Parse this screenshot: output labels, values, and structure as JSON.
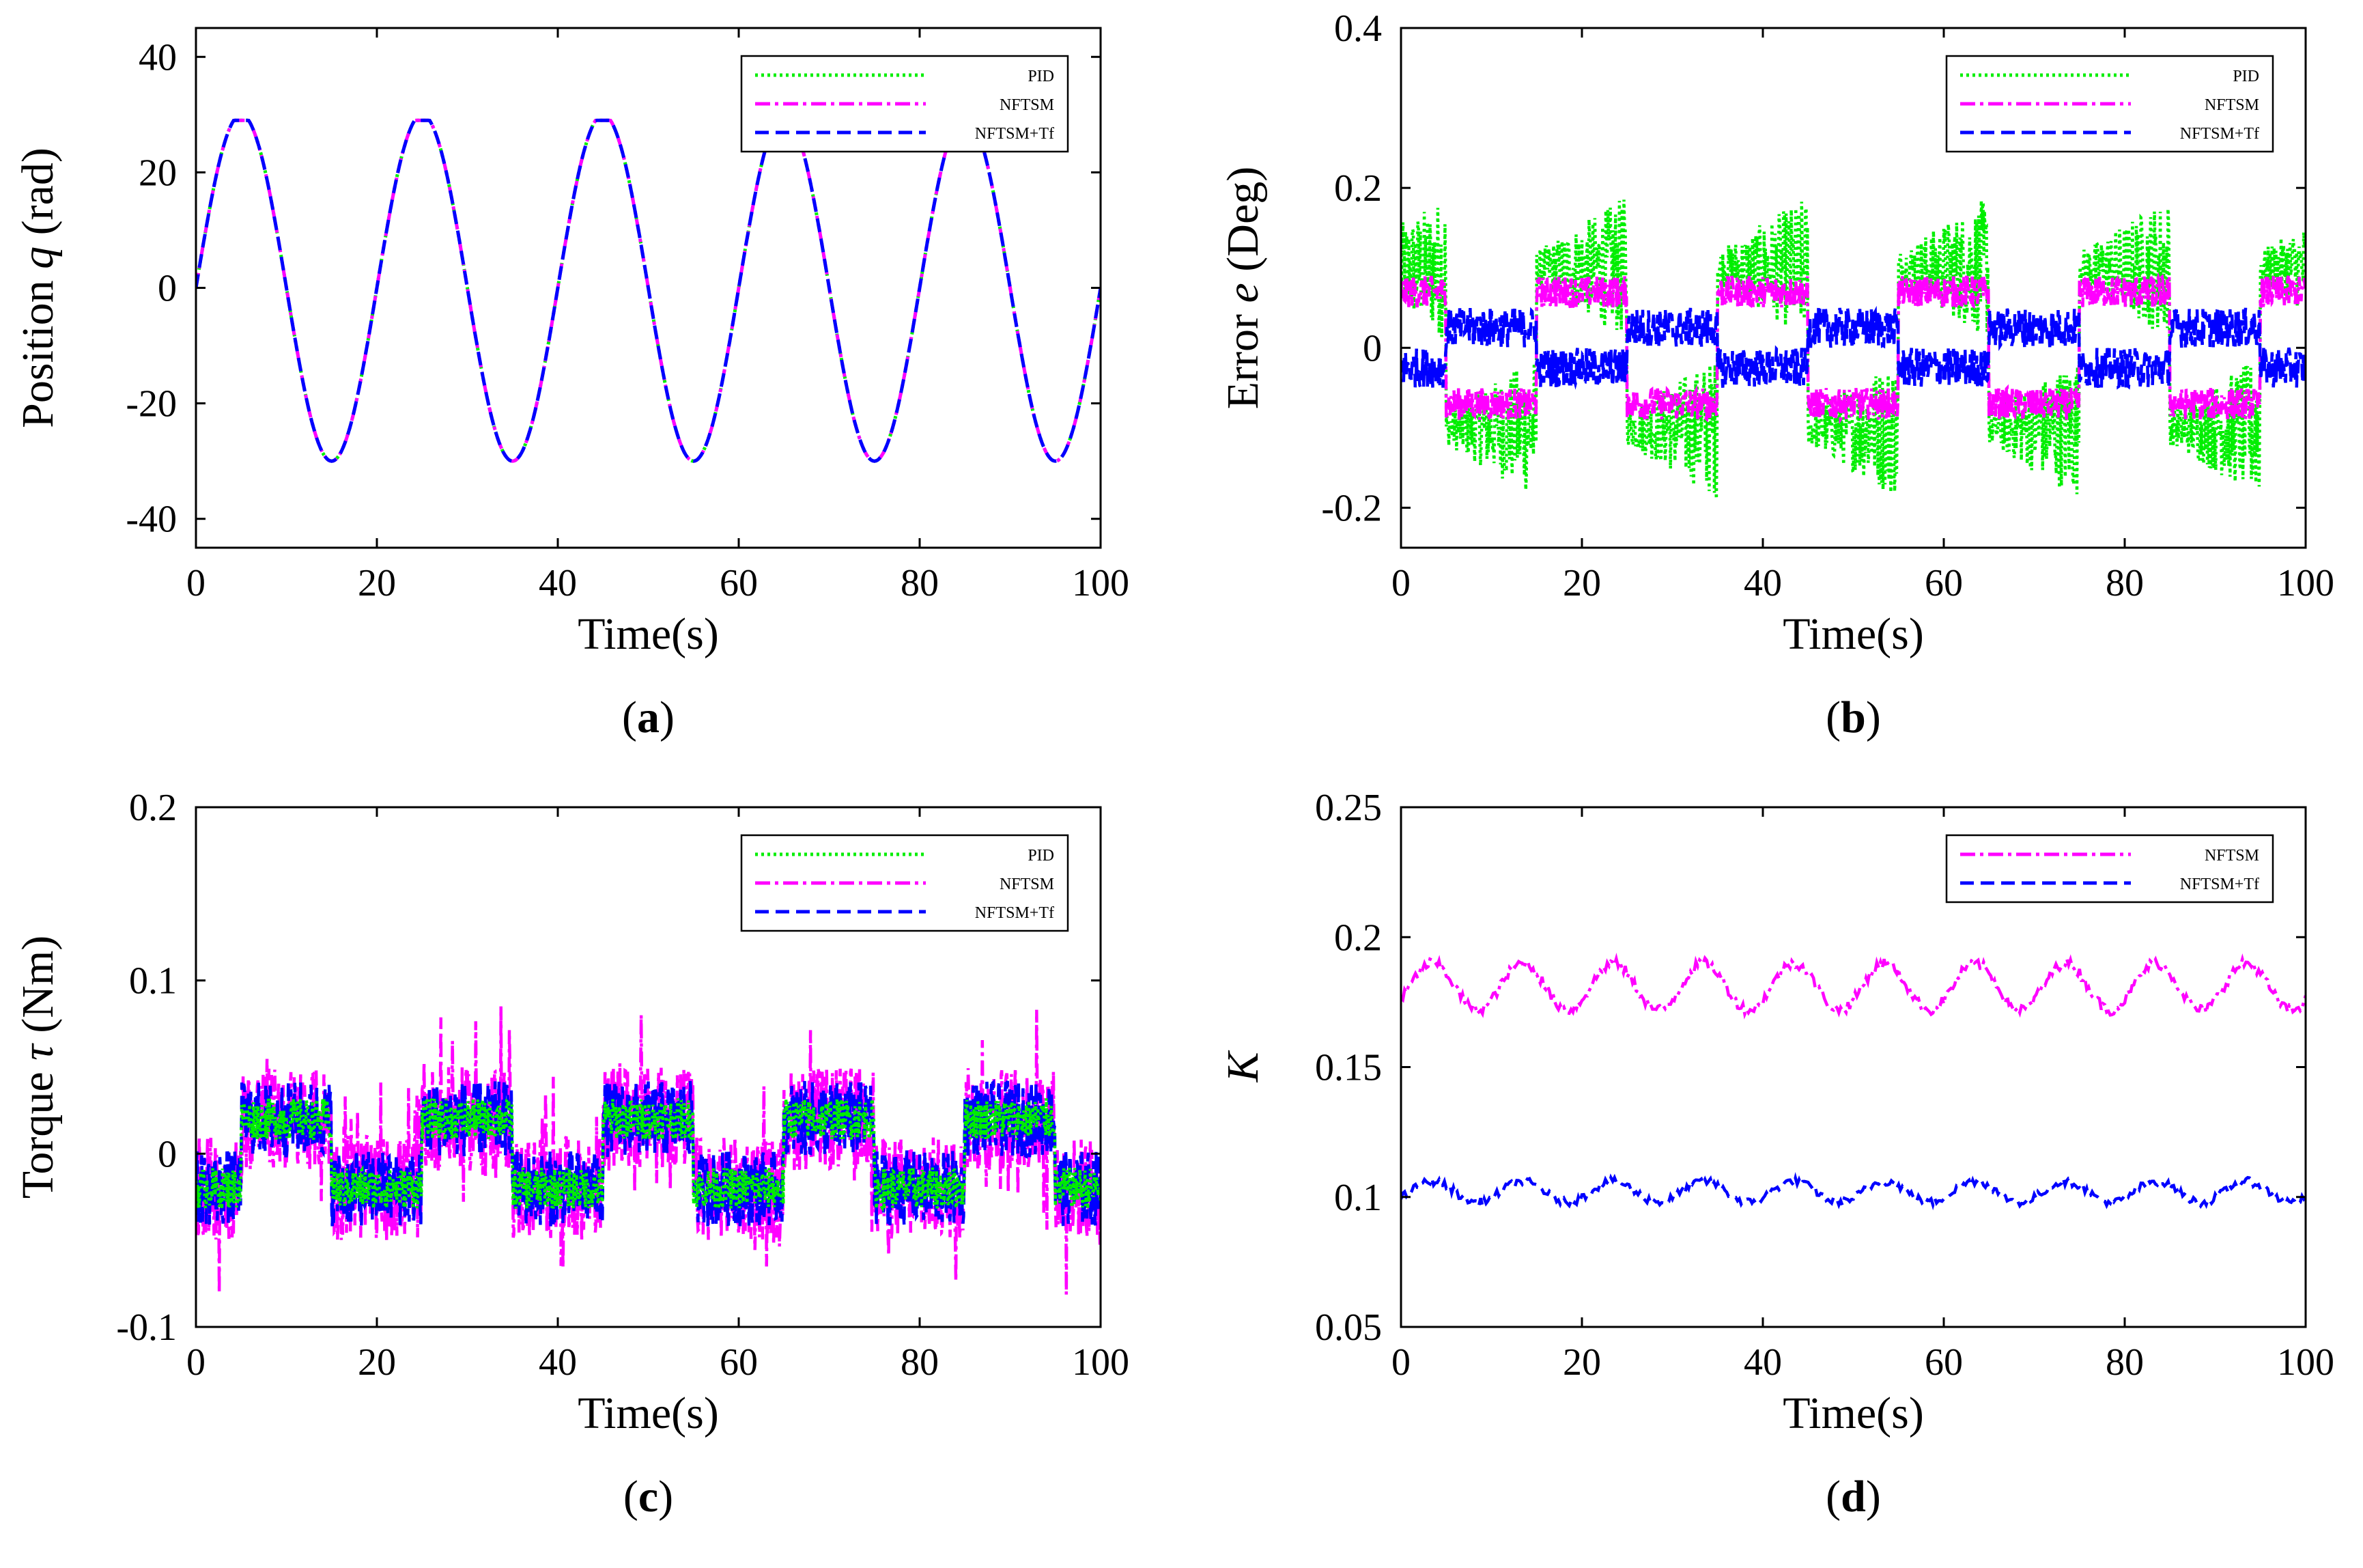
{
  "colors": {
    "PID": "#00ee00",
    "NFTSM": "#ff00ff",
    "NFTSM+Tf": "#0000ff"
  },
  "chart_data": [
    {
      "id": "a",
      "type": "line",
      "caption": "a",
      "xlabel": "Time(s)",
      "ylabel_prefix": "Position ",
      "ylabel_symbol": "q",
      "ylabel_suffix": " (rad)",
      "xlim": [
        0,
        100
      ],
      "ylim": [
        -45,
        45
      ],
      "xticks": [
        0,
        20,
        40,
        60,
        80,
        100
      ],
      "yticks": [
        -40,
        -20,
        0,
        20,
        40
      ],
      "xtick_labels": [
        "0",
        "20",
        "40",
        "60",
        "80",
        "100"
      ],
      "ytick_labels": [
        "-40",
        "-20",
        "0",
        "20",
        "40"
      ],
      "legend": [
        "PID",
        "NFTSM",
        "NFTSM+Tf"
      ],
      "series": [
        {
          "name": "PID",
          "kind": "trapsine",
          "amp": 30,
          "period": 20,
          "clip": 29,
          "offset": 0
        },
        {
          "name": "NFTSM",
          "kind": "trapsine",
          "amp": 30,
          "period": 20,
          "clip": 29,
          "offset": 0
        },
        {
          "name": "NFTSM+Tf",
          "kind": "trapsine",
          "amp": 30,
          "period": 20,
          "clip": 29,
          "offset": 0
        }
      ]
    },
    {
      "id": "b",
      "type": "line",
      "caption": "b",
      "xlabel": "Time(s)",
      "ylabel_prefix": "Error ",
      "ylabel_symbol": "e",
      "ylabel_suffix": " (Deg)",
      "xlim": [
        0,
        100
      ],
      "ylim": [
        -0.25,
        0.4
      ],
      "xticks": [
        0,
        20,
        40,
        60,
        80,
        100
      ],
      "yticks": [
        -0.2,
        0,
        0.2,
        0.4
      ],
      "xtick_labels": [
        "0",
        "20",
        "40",
        "60",
        "80",
        "100"
      ],
      "ytick_labels": [
        "-0.2",
        "0",
        "0.2",
        "0.4"
      ],
      "legend": [
        "PID",
        "NFTSM",
        "NFTSM+Tf"
      ],
      "series": [
        {
          "name": "PID",
          "kind": "square",
          "level": 0.1,
          "noise": 0.07,
          "period": 20,
          "phase": 5,
          "grow": true
        },
        {
          "name": "NFTSM",
          "kind": "square",
          "level": 0.07,
          "noise": 0.02,
          "period": 20,
          "phase": 5
        },
        {
          "name": "NFTSM+Tf",
          "kind": "square",
          "level": -0.025,
          "noise": 0.025,
          "period": 20,
          "phase": 5
        }
      ]
    },
    {
      "id": "c",
      "type": "line",
      "caption": "c",
      "xlabel": "Time(s)",
      "ylabel_prefix": "Torque ",
      "ylabel_symbol": "τ",
      "ylabel_suffix": " (Nm)",
      "xlim": [
        0,
        100
      ],
      "ylim": [
        -0.1,
        0.2
      ],
      "xticks": [
        0,
        20,
        40,
        60,
        80,
        100
      ],
      "yticks": [
        -0.1,
        0,
        0.1,
        0.2
      ],
      "xtick_labels": [
        "0",
        "20",
        "40",
        "60",
        "80",
        "100"
      ],
      "ytick_labels": [
        "-0.1",
        "0",
        "0.1",
        "0.2"
      ],
      "legend": [
        "PID",
        "NFTSM",
        "NFTSM+Tf"
      ],
      "series": [
        {
          "name": "NFTSM",
          "kind": "square",
          "level": -0.02,
          "noise": 0.03,
          "period": 20,
          "phase": 5,
          "spiky": true
        },
        {
          "name": "NFTSM+Tf",
          "kind": "square",
          "level": -0.02,
          "noise": 0.022,
          "period": 20,
          "phase": 5
        },
        {
          "name": "PID",
          "kind": "square",
          "level": -0.02,
          "noise": 0.012,
          "period": 20,
          "phase": 5
        }
      ]
    },
    {
      "id": "d",
      "type": "line",
      "caption": "d",
      "xlabel": "Time(s)",
      "ylabel_prefix": "",
      "ylabel_symbol": "K",
      "ylabel_suffix": "",
      "xlim": [
        0,
        100
      ],
      "ylim": [
        0.05,
        0.25
      ],
      "xticks": [
        0,
        20,
        40,
        60,
        80,
        100
      ],
      "yticks": [
        0.05,
        0.1,
        0.15,
        0.2,
        0.25
      ],
      "xtick_labels": [
        "0",
        "20",
        "40",
        "60",
        "80",
        "100"
      ],
      "ytick_labels": [
        "0.05",
        "0.1",
        "0.15",
        "0.2",
        "0.25"
      ],
      "legend": [
        "NFTSM",
        "NFTSM+Tf"
      ],
      "series": [
        {
          "name": "NFTSM",
          "kind": "wave",
          "base": 0.181,
          "amp": 0.009,
          "period": 10,
          "noise": 0.002
        },
        {
          "name": "NFTSM+Tf",
          "kind": "wave",
          "base": 0.102,
          "amp": 0.004,
          "period": 10,
          "noise": 0.0015
        }
      ]
    }
  ]
}
